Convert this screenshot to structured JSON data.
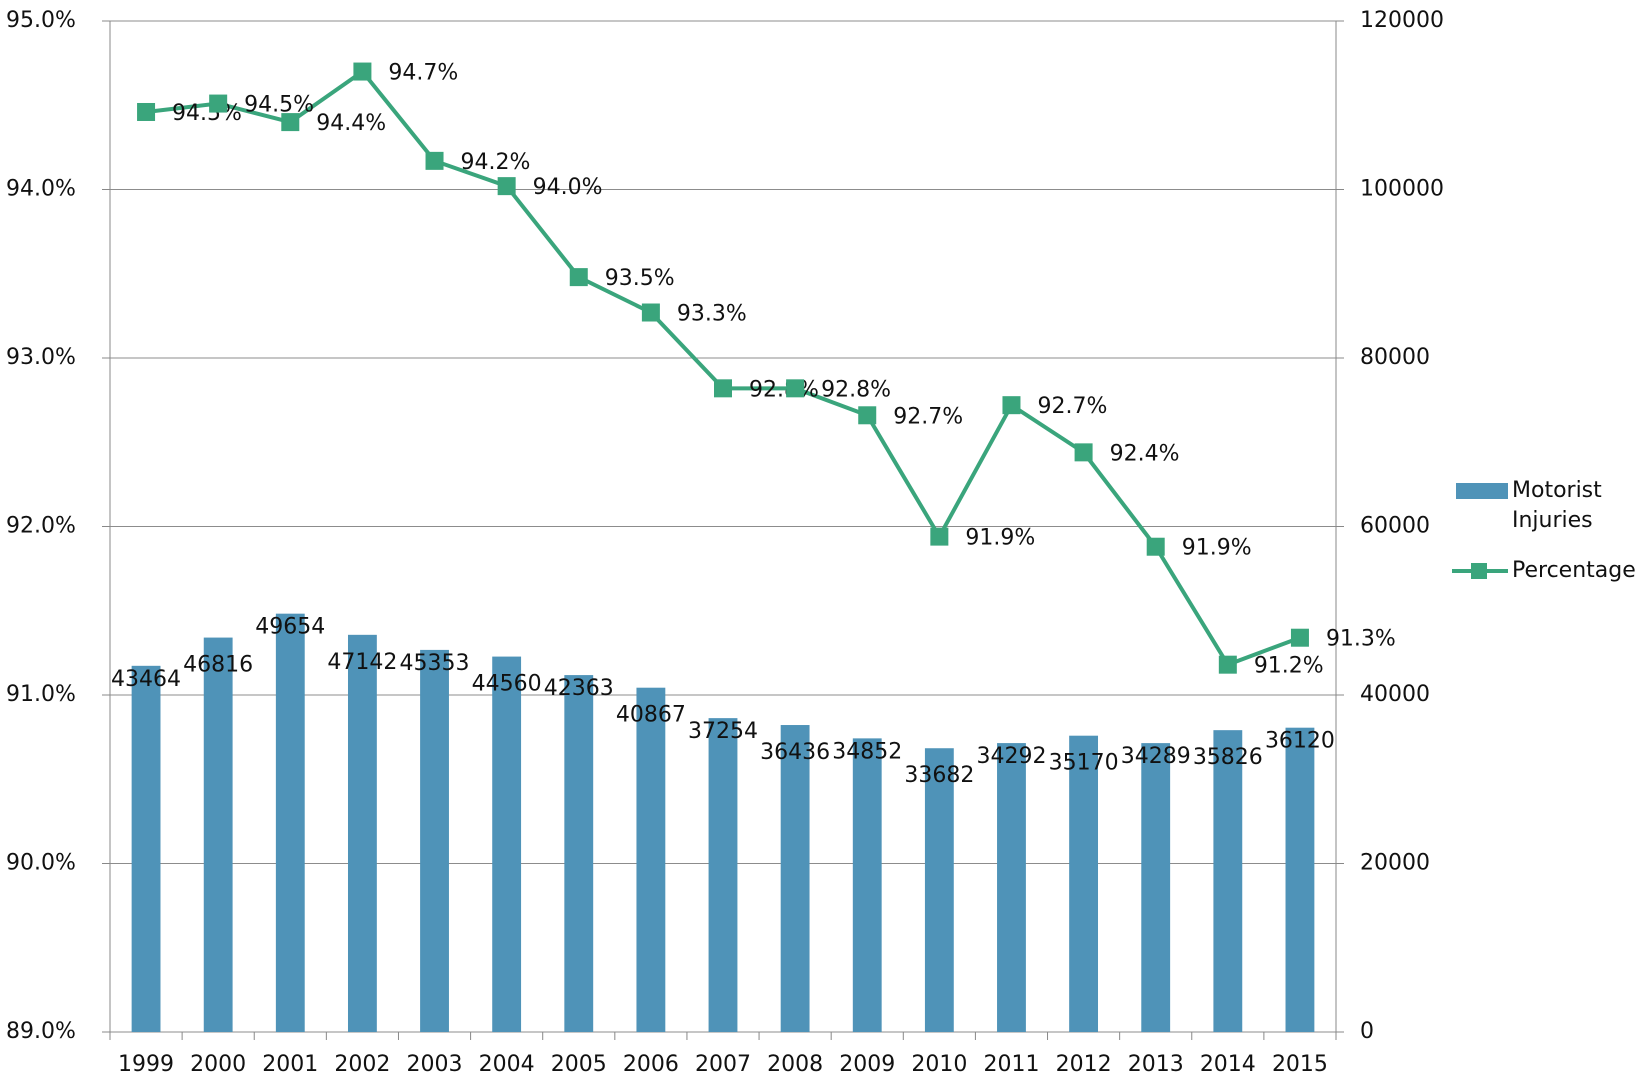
{
  "chart_data": {
    "type": "bar-line",
    "categories": [
      "1999",
      "2000",
      "2001",
      "2002",
      "2003",
      "2004",
      "2005",
      "2006",
      "2007",
      "2008",
      "2009",
      "2010",
      "2011",
      "2012",
      "2013",
      "2014",
      "2015"
    ],
    "series": [
      {
        "name": "Motorist Injuries",
        "type": "bar",
        "axis": "y2",
        "color": "#4f93b8",
        "values": [
          43464,
          46816,
          49654,
          47142,
          45353,
          44560,
          42363,
          40867,
          37254,
          36436,
          34852,
          33682,
          34292,
          35170,
          34289,
          35826,
          36120
        ]
      },
      {
        "name": "Percentage",
        "type": "line",
        "axis": "y",
        "color": "#3aa57c",
        "values": [
          94.46,
          94.51,
          94.4,
          94.7,
          94.17,
          94.02,
          93.48,
          93.27,
          92.82,
          92.82,
          92.66,
          91.94,
          92.72,
          92.44,
          91.88,
          91.18,
          91.34
        ],
        "value_labels": [
          "94.5%",
          "94.5%",
          "94.4%",
          "94.7%",
          "94.2%",
          "94.0%",
          "93.5%",
          "93.3%",
          "92.8%",
          "92.8%",
          "92.7%",
          "91.9%",
          "92.7%",
          "92.4%",
          "91.9%",
          "91.2%",
          "91.3%"
        ]
      }
    ],
    "ylim": [
      89,
      95
    ],
    "yticks": [
      {
        "value": 89,
        "label": "89.0%"
      },
      {
        "value": 90,
        "label": "90.0%"
      },
      {
        "value": 91,
        "label": "91.0%"
      },
      {
        "value": 92,
        "label": "92.0%"
      },
      {
        "value": 93,
        "label": "93.0%"
      },
      {
        "value": 94,
        "label": "94.0%"
      },
      {
        "value": 95,
        "label": "95.0%"
      }
    ],
    "y2lim": [
      0,
      120000
    ],
    "y2ticks": [
      0,
      20000,
      40000,
      60000,
      80000,
      100000,
      120000
    ],
    "grid": true,
    "legend": "right"
  }
}
